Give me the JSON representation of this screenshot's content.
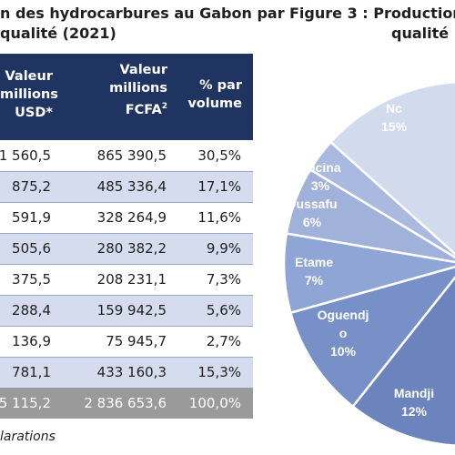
{
  "table": {
    "title": "n des hydrocarbures au Gabon par qualité (2021)",
    "title_line1": "n des hydrocarbures au Gabon par",
    "title_line2": "qualité (2021)",
    "headers": {
      "c1": "Valeur millions USD*",
      "c1_lines": [
        "Valeur",
        "millions",
        "USD*"
      ],
      "c2": "Valeur millions FCFA²",
      "c2_lines": [
        "Valeur",
        "millions",
        "FCFA"
      ],
      "c2_sup": "2",
      "c3": "% par volume",
      "c3_lines": [
        "% par",
        "volume"
      ]
    },
    "rows": [
      {
        "usd": "1 560,5",
        "fcfa": "865 390,5",
        "pct": "30,5%"
      },
      {
        "usd": "875,2",
        "fcfa": "485 336,4",
        "pct": "17,1%"
      },
      {
        "usd": "591,9",
        "fcfa": "328 264,9",
        "pct": "11,6%"
      },
      {
        "usd": "505,6",
        "fcfa": "280 382,2",
        "pct": "9,9%"
      },
      {
        "usd": "375,5",
        "fcfa": "208 231,1",
        "pct": "7,3%"
      },
      {
        "usd": "288,4",
        "fcfa": "159 942,5",
        "pct": "5,6%"
      },
      {
        "usd": "136,9",
        "fcfa": "75 945,7",
        "pct": "2,7%"
      },
      {
        "usd": "781,1",
        "fcfa": "433 160,3",
        "pct": "15,3%"
      }
    ],
    "total": {
      "usd": "5 115,2",
      "fcfa": "2 836 653,6",
      "pct": "100,0%"
    },
    "source": "larations",
    "colors": {
      "header": "#1f3460",
      "alt_row": "#d4dcee",
      "total_row": "#9a9a9a"
    }
  },
  "figure": {
    "title_line1": "Figure 3 : Production",
    "title_line2": "qualité"
  },
  "chart_data": {
    "type": "pie",
    "title": "Figure 3 : Production qualité",
    "slices": [
      {
        "label": "Nc",
        "label_lines": [
          "Nc"
        ],
        "pct_label": "15%",
        "value": 15,
        "color": "#d2daee"
      },
      {
        "label": "Lucina",
        "label_lines": [
          "Lucina"
        ],
        "pct_label": "3%",
        "value": 3,
        "color": "#a9b9df"
      },
      {
        "label": "Dussafu",
        "label_lines": [
          "Dussafu"
        ],
        "pct_label": "6%",
        "value": 6,
        "color": "#a1b2da"
      },
      {
        "label": "Etame",
        "label_lines": [
          "Etame"
        ],
        "pct_label": "7%",
        "value": 7,
        "color": "#8fa5d6"
      },
      {
        "label": "Oguendjo",
        "label_lines": [
          "Oguendj",
          "o"
        ],
        "pct_label": "10%",
        "value": 10,
        "color": "#7890c8"
      },
      {
        "label": "Mandji",
        "label_lines": [
          "Mandji"
        ],
        "pct_label": "12%",
        "value": 12,
        "color": "#6b84bd"
      }
    ],
    "legend": "none"
  }
}
